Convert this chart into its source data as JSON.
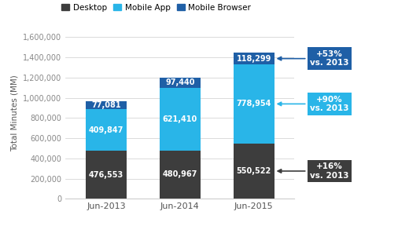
{
  "categories": [
    "Jun-2013",
    "Jun-2014",
    "Jun-2015"
  ],
  "desktop": [
    476553,
    480967,
    550522
  ],
  "mobile_app": [
    409847,
    621410,
    778954
  ],
  "mobile_browser": [
    77081,
    97440,
    118299
  ],
  "desktop_color": "#3d3d3d",
  "mobile_app_color": "#29b5e8",
  "mobile_browser_color": "#1f5fa6",
  "ylim": [
    0,
    1700000
  ],
  "yticks": [
    0,
    200000,
    400000,
    600000,
    800000,
    1000000,
    1200000,
    1400000,
    1600000
  ],
  "ytick_labels": [
    "0",
    "200,000",
    "400,000",
    "600,000",
    "800,000",
    "1,000,000",
    "1,200,000",
    "1,400,000",
    "1,600,000"
  ],
  "ylabel": "Total Minutes (MM)",
  "legend_labels": [
    "Desktop",
    "Mobile App",
    "Mobile Browser"
  ],
  "bar_width": 0.55,
  "background_color": "#ffffff",
  "ann_desktop": "+16%\nvs. 2013",
  "ann_app": "+90%\nvs. 2013",
  "ann_browser": "+53%\nvs. 2013"
}
